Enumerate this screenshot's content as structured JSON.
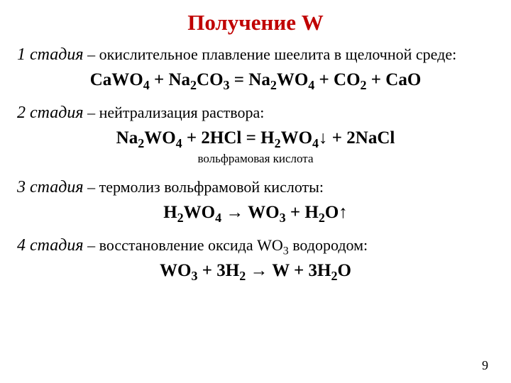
{
  "title": "Получение W",
  "title_color": "#c00000",
  "background_color": "#ffffff",
  "text_color": "#000000",
  "page_number": "9",
  "stages": {
    "s1": {
      "lead": "1 стадия",
      "desc": " – окислительное плавление шеелита в щелочной среде:"
    },
    "s2": {
      "lead": "2 стадия",
      "desc": " – нейтрализация раствора:",
      "eq_note": "вольфрамовая кислота"
    },
    "s3": {
      "lead": "3 стадия",
      "desc": " – термолиз вольфрамовой кислоты:"
    },
    "s4": {
      "lead": "4 стадия",
      "desc_pre": " – восстановление оксида WO",
      "desc_sub": "3",
      "desc_post": " водородом:"
    }
  },
  "eq": {
    "e1": {
      "p1": "CaWO",
      "s1": "4",
      "p2": " + Na",
      "s2": "2",
      "p3": "CO",
      "s3": "3",
      "p4": " = Na",
      "s4": "2",
      "p5": "WO",
      "s5": "4",
      "p6": " + CO",
      "s6": "2",
      "p7": " + CaO"
    },
    "e2": {
      "p1": "Na",
      "s1": "2",
      "p2": "WO",
      "s2": "4",
      "p3": " + 2HCl = H",
      "s3": "2",
      "p4": "WO",
      "s4": "4",
      "p5": "↓ + 2NaCl"
    },
    "e3": {
      "p1": "H",
      "s1": "2",
      "p2": "WO",
      "s2": "4",
      "p3": " → WO",
      "s3": "3",
      "p4": " + H",
      "s4": "2",
      "p5": "O↑"
    },
    "e4": {
      "p1": "WO",
      "s1": "3",
      "p2": " + 3H",
      "s2": "2",
      "p3": " → W + 3H",
      "s3": "2",
      "p4": "O"
    }
  }
}
